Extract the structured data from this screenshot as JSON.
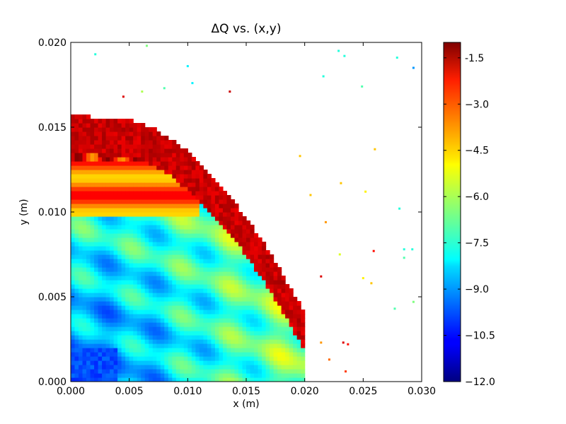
{
  "chart_data": {
    "type": "heatmap",
    "title": "ΔQ vs. (x,y)",
    "xlabel": "x (m)",
    "ylabel": "y (m)",
    "xlim": [
      0,
      0.03
    ],
    "ylim": [
      0,
      0.02
    ],
    "x_ticks": [
      "0.000",
      "0.005",
      "0.010",
      "0.015",
      "0.020",
      "0.025",
      "0.030"
    ],
    "y_ticks": [
      "0.000",
      "0.005",
      "0.010",
      "0.015",
      "0.020"
    ],
    "colorbar": {
      "range": [
        -12.0,
        -1.0
      ],
      "ticks": [
        "-1.5",
        "−3.0",
        "−4.5",
        "−6.0",
        "−7.5",
        "−9.0",
        "−10.5",
        "−12.0"
      ],
      "colormap": "jet"
    },
    "regions": [
      {
        "description_value": -6.5,
        "note_value": "x 0.000–0.020, y 0.000–0.010 dominant"
      },
      {
        "description_value": -10.0,
        "note_value": "x 0.000–0.004, y 0.000–0.002"
      },
      {
        "description_value": -4.0,
        "note_value": "x 0.000–0.010, y 0.010–0.016"
      },
      {
        "description_value": -2.0,
        "note_value": "x 0.005–0.018, y 0.007–0.015"
      }
    ],
    "scatter_points": [
      {
        "x": 0.0021,
        "y": 0.0193,
        "v": -7.5
      },
      {
        "x": 0.0065,
        "y": 0.0198,
        "v": -6.5
      },
      {
        "x": 0.01,
        "y": 0.0186,
        "v": -8.0
      },
      {
        "x": 0.0104,
        "y": 0.0176,
        "v": -8.0
      },
      {
        "x": 0.008,
        "y": 0.0173,
        "v": -7.0
      },
      {
        "x": 0.0061,
        "y": 0.0171,
        "v": -6.0
      },
      {
        "x": 0.0045,
        "y": 0.0168,
        "v": -2.0
      },
      {
        "x": 0.0136,
        "y": 0.0171,
        "v": -1.8
      },
      {
        "x": 0.0229,
        "y": 0.0195,
        "v": -7.5
      },
      {
        "x": 0.0234,
        "y": 0.0192,
        "v": -7.5
      },
      {
        "x": 0.0216,
        "y": 0.018,
        "v": -7.5
      },
      {
        "x": 0.0249,
        "y": 0.0174,
        "v": -7.0
      },
      {
        "x": 0.0279,
        "y": 0.0191,
        "v": -7.5
      },
      {
        "x": 0.0293,
        "y": 0.0185,
        "v": -9.0
      },
      {
        "x": 0.0196,
        "y": 0.0133,
        "v": -4.5
      },
      {
        "x": 0.026,
        "y": 0.0137,
        "v": -4.5
      },
      {
        "x": 0.0231,
        "y": 0.0117,
        "v": -4.5
      },
      {
        "x": 0.0252,
        "y": 0.0112,
        "v": -5.0
      },
      {
        "x": 0.0205,
        "y": 0.011,
        "v": -4.5
      },
      {
        "x": 0.0281,
        "y": 0.0102,
        "v": -7.5
      },
      {
        "x": 0.0218,
        "y": 0.0094,
        "v": -4.0
      },
      {
        "x": 0.0259,
        "y": 0.0077,
        "v": -2.5
      },
      {
        "x": 0.023,
        "y": 0.0075,
        "v": -5.5
      },
      {
        "x": 0.0285,
        "y": 0.0078,
        "v": -7.5
      },
      {
        "x": 0.0292,
        "y": 0.0078,
        "v": -7.5
      },
      {
        "x": 0.0285,
        "y": 0.0073,
        "v": -7.0
      },
      {
        "x": 0.0214,
        "y": 0.0062,
        "v": -2.0
      },
      {
        "x": 0.025,
        "y": 0.0061,
        "v": -5.0
      },
      {
        "x": 0.0257,
        "y": 0.0058,
        "v": -4.5
      },
      {
        "x": 0.0293,
        "y": 0.0047,
        "v": -6.5
      },
      {
        "x": 0.0277,
        "y": 0.0043,
        "v": -7.0
      },
      {
        "x": 0.0233,
        "y": 0.0023,
        "v": -2.0
      },
      {
        "x": 0.0237,
        "y": 0.0022,
        "v": -2.5
      },
      {
        "x": 0.0214,
        "y": 0.0023,
        "v": -4.0
      },
      {
        "x": 0.0221,
        "y": 0.0013,
        "v": -3.5
      },
      {
        "x": 0.0235,
        "y": 0.0006,
        "v": -3.0
      }
    ]
  }
}
